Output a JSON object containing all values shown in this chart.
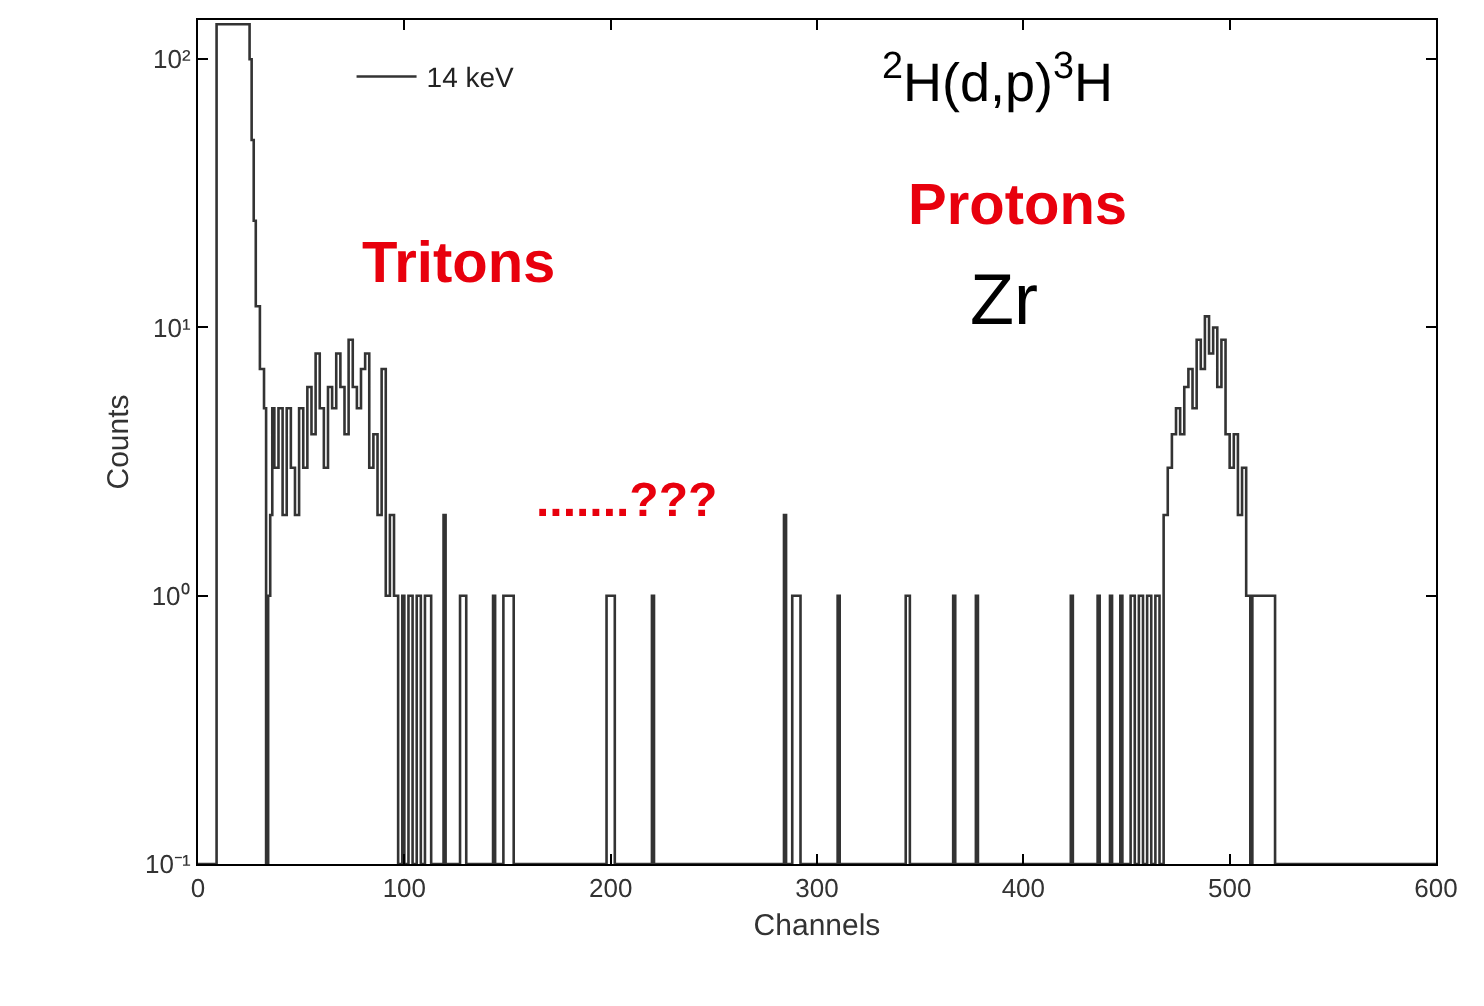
{
  "chart_data": {
    "type": "step",
    "xlabel": "Channels",
    "ylabel": "Counts",
    "x": [
      0,
      9,
      25,
      26,
      27,
      28,
      30,
      32,
      33,
      34,
      35,
      36,
      37,
      39,
      41,
      43,
      45,
      47,
      49,
      51,
      53,
      55,
      57,
      59,
      61,
      63,
      65,
      67,
      69,
      71,
      73,
      75,
      77,
      79,
      81,
      83,
      85,
      87,
      89,
      91,
      93,
      95,
      97,
      99,
      100,
      102,
      104,
      106,
      108,
      110,
      113,
      119,
      120,
      127,
      130,
      143,
      144,
      148,
      153,
      198,
      202,
      220,
      221,
      284,
      285,
      288,
      292,
      310,
      311,
      343,
      345,
      366,
      367,
      377,
      378,
      423,
      424,
      436,
      437,
      442,
      443,
      447,
      448,
      452,
      454,
      456,
      458,
      460,
      462,
      464,
      466,
      468,
      470,
      472,
      474,
      476,
      478,
      480,
      482,
      484,
      486,
      488,
      490,
      492,
      494,
      496,
      498,
      500,
      502,
      504,
      506,
      508,
      510,
      511,
      516,
      521,
      522,
      600
    ],
    "series": [
      {
        "name": "14 keV",
        "color": "#333333",
        "values": [
          0.1,
          135,
          100,
          50,
          25,
          12,
          7,
          5,
          0.1,
          1,
          2,
          5,
          3,
          5,
          2,
          5,
          3,
          2,
          5,
          3,
          6,
          4,
          8,
          5,
          3,
          6,
          5,
          8,
          6,
          4,
          9,
          6,
          5,
          7,
          8,
          3,
          4,
          2,
          7,
          1,
          2,
          1,
          0.1,
          1,
          0.1,
          1,
          0.1,
          1,
          0.1,
          1,
          0.1,
          2,
          0.1,
          1,
          0.1,
          1,
          0.1,
          1,
          0.1,
          1,
          0.1,
          1,
          0.1,
          2,
          0.1,
          1,
          0.1,
          1,
          0.1,
          1,
          0.1,
          1,
          0.1,
          1,
          0.1,
          1,
          0.1,
          1,
          0.1,
          1,
          0.1,
          1,
          0.1,
          1,
          0.1,
          1,
          0.1,
          1,
          0.1,
          1,
          0.1,
          2,
          3,
          4,
          5,
          4,
          6,
          7,
          5,
          9,
          7,
          11,
          8,
          10,
          6,
          9,
          4,
          3,
          4,
          2,
          3,
          1,
          0.1,
          1,
          1,
          1,
          0.1,
          0.1
        ]
      }
    ],
    "xlim": [
      0,
      600
    ],
    "xticks": [
      0,
      100,
      200,
      300,
      400,
      500,
      600
    ],
    "ylim": [
      0.1,
      140
    ],
    "log": "y",
    "yticks": [
      {
        "value": 0.1,
        "label": "10⁻¹"
      },
      {
        "value": 1,
        "label": "10⁰"
      },
      {
        "value": 10,
        "label": "10¹"
      },
      {
        "value": 100,
        "label": "10²"
      }
    ],
    "legend": "top left",
    "annotations": [
      "$^{2}$H(d,p)$^{3}$H",
      "Zr",
      "Tritons",
      "Protons",
      ".......???"
    ]
  }
}
